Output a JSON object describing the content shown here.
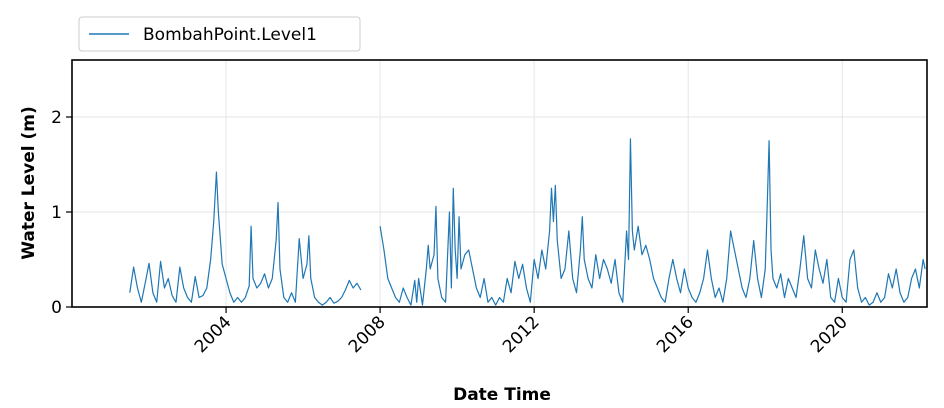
{
  "chart_data": {
    "type": "line",
    "xlabel": "Date Time",
    "ylabel": "Water Level (m)",
    "xlim": [
      2000.0,
      2022.2
    ],
    "ylim": [
      0,
      2.6
    ],
    "x_ticks": [
      2004,
      2008,
      2012,
      2016,
      2020
    ],
    "x_tick_labels": [
      "2004",
      "2008",
      "2012",
      "2016",
      "2020"
    ],
    "y_ticks": [
      0,
      1,
      2
    ],
    "y_tick_labels": [
      "0",
      "1",
      "2"
    ],
    "grid": true,
    "legend": "top-left, outside plot",
    "series": [
      {
        "name": "BombahPoint.Level1",
        "color": "#1f77b4",
        "segments": [
          [
            [
              2001.5,
              0.15
            ],
            [
              2001.6,
              0.42
            ],
            [
              2001.7,
              0.2
            ],
            [
              2001.8,
              0.05
            ],
            [
              2001.9,
              0.25
            ],
            [
              2002.0,
              0.46
            ],
            [
              2002.1,
              0.15
            ],
            [
              2002.2,
              0.05
            ],
            [
              2002.3,
              0.48
            ],
            [
              2002.4,
              0.2
            ],
            [
              2002.5,
              0.3
            ],
            [
              2002.6,
              0.12
            ],
            [
              2002.7,
              0.05
            ],
            [
              2002.8,
              0.42
            ],
            [
              2002.9,
              0.2
            ],
            [
              2003.0,
              0.1
            ],
            [
              2003.1,
              0.05
            ],
            [
              2003.2,
              0.32
            ],
            [
              2003.3,
              0.1
            ],
            [
              2003.4,
              0.12
            ],
            [
              2003.5,
              0.2
            ],
            [
              2003.6,
              0.5
            ],
            [
              2003.68,
              0.9
            ],
            [
              2003.75,
              1.42
            ],
            [
              2003.8,
              1.0
            ],
            [
              2003.9,
              0.45
            ],
            [
              2004.0,
              0.3
            ],
            [
              2004.1,
              0.15
            ],
            [
              2004.2,
              0.05
            ],
            [
              2004.3,
              0.1
            ],
            [
              2004.4,
              0.05
            ],
            [
              2004.5,
              0.1
            ],
            [
              2004.6,
              0.22
            ],
            [
              2004.65,
              0.85
            ],
            [
              2004.7,
              0.3
            ],
            [
              2004.8,
              0.2
            ],
            [
              2004.9,
              0.25
            ],
            [
              2005.0,
              0.35
            ],
            [
              2005.1,
              0.2
            ],
            [
              2005.2,
              0.3
            ],
            [
              2005.3,
              0.7
            ],
            [
              2005.35,
              1.1
            ],
            [
              2005.4,
              0.4
            ],
            [
              2005.5,
              0.1
            ],
            [
              2005.6,
              0.05
            ],
            [
              2005.7,
              0.15
            ],
            [
              2005.8,
              0.05
            ],
            [
              2005.9,
              0.72
            ],
            [
              2006.0,
              0.3
            ],
            [
              2006.1,
              0.45
            ],
            [
              2006.15,
              0.75
            ],
            [
              2006.2,
              0.3
            ],
            [
              2006.3,
              0.1
            ],
            [
              2006.4,
              0.05
            ],
            [
              2006.5,
              0.02
            ],
            [
              2006.6,
              0.05
            ],
            [
              2006.7,
              0.1
            ],
            [
              2006.8,
              0.04
            ],
            [
              2006.9,
              0.06
            ],
            [
              2007.0,
              0.1
            ],
            [
              2007.1,
              0.18
            ],
            [
              2007.2,
              0.28
            ],
            [
              2007.3,
              0.2
            ],
            [
              2007.4,
              0.25
            ],
            [
              2007.5,
              0.18
            ]
          ],
          [
            [
              2008.0,
              0.85
            ],
            [
              2008.1,
              0.6
            ],
            [
              2008.2,
              0.3
            ],
            [
              2008.3,
              0.2
            ],
            [
              2008.4,
              0.1
            ],
            [
              2008.5,
              0.05
            ],
            [
              2008.6,
              0.2
            ],
            [
              2008.7,
              0.1
            ],
            [
              2008.8,
              0.02
            ],
            [
              2008.9,
              0.28
            ],
            [
              2008.95,
              0.05
            ],
            [
              2009.0,
              0.3
            ],
            [
              2009.1,
              0.02
            ],
            [
              2009.2,
              0.4
            ],
            [
              2009.25,
              0.65
            ],
            [
              2009.3,
              0.4
            ],
            [
              2009.4,
              0.55
            ],
            [
              2009.45,
              1.06
            ],
            [
              2009.5,
              0.3
            ],
            [
              2009.6,
              0.1
            ],
            [
              2009.7,
              0.05
            ],
            [
              2009.8,
              1.0
            ],
            [
              2009.85,
              0.2
            ],
            [
              2009.9,
              1.25
            ],
            [
              2009.95,
              0.6
            ],
            [
              2010.0,
              0.3
            ],
            [
              2010.05,
              0.95
            ],
            [
              2010.1,
              0.4
            ],
            [
              2010.2,
              0.55
            ],
            [
              2010.3,
              0.6
            ],
            [
              2010.4,
              0.4
            ],
            [
              2010.5,
              0.2
            ],
            [
              2010.6,
              0.1
            ],
            [
              2010.7,
              0.3
            ],
            [
              2010.8,
              0.05
            ],
            [
              2010.9,
              0.1
            ],
            [
              2011.0,
              0.02
            ],
            [
              2011.1,
              0.1
            ],
            [
              2011.2,
              0.05
            ],
            [
              2011.3,
              0.3
            ],
            [
              2011.4,
              0.15
            ],
            [
              2011.5,
              0.48
            ],
            [
              2011.6,
              0.3
            ],
            [
              2011.7,
              0.45
            ],
            [
              2011.8,
              0.2
            ],
            [
              2011.9,
              0.05
            ],
            [
              2012.0,
              0.5
            ],
            [
              2012.1,
              0.3
            ],
            [
              2012.2,
              0.6
            ],
            [
              2012.3,
              0.4
            ],
            [
              2012.4,
              0.8
            ],
            [
              2012.45,
              1.25
            ],
            [
              2012.5,
              0.9
            ],
            [
              2012.55,
              1.28
            ],
            [
              2012.6,
              0.7
            ],
            [
              2012.7,
              0.3
            ],
            [
              2012.8,
              0.4
            ],
            [
              2012.9,
              0.8
            ],
            [
              2013.0,
              0.3
            ],
            [
              2013.1,
              0.15
            ],
            [
              2013.2,
              0.6
            ],
            [
              2013.25,
              0.95
            ],
            [
              2013.3,
              0.5
            ],
            [
              2013.4,
              0.3
            ],
            [
              2013.5,
              0.2
            ],
            [
              2013.6,
              0.55
            ],
            [
              2013.7,
              0.3
            ],
            [
              2013.8,
              0.5
            ],
            [
              2013.9,
              0.4
            ],
            [
              2014.0,
              0.25
            ],
            [
              2014.1,
              0.5
            ],
            [
              2014.2,
              0.15
            ],
            [
              2014.3,
              0.05
            ],
            [
              2014.4,
              0.8
            ],
            [
              2014.45,
              0.5
            ],
            [
              2014.5,
              1.77
            ],
            [
              2014.55,
              0.8
            ],
            [
              2014.6,
              0.6
            ],
            [
              2014.7,
              0.85
            ],
            [
              2014.8,
              0.55
            ],
            [
              2014.9,
              0.65
            ],
            [
              2015.0,
              0.5
            ],
            [
              2015.1,
              0.3
            ],
            [
              2015.2,
              0.2
            ],
            [
              2015.3,
              0.1
            ],
            [
              2015.4,
              0.05
            ],
            [
              2015.5,
              0.3
            ],
            [
              2015.6,
              0.5
            ],
            [
              2015.7,
              0.3
            ],
            [
              2015.8,
              0.15
            ],
            [
              2015.9,
              0.4
            ],
            [
              2016.0,
              0.2
            ],
            [
              2016.1,
              0.1
            ],
            [
              2016.2,
              0.05
            ],
            [
              2016.3,
              0.15
            ],
            [
              2016.4,
              0.3
            ],
            [
              2016.5,
              0.6
            ],
            [
              2016.6,
              0.3
            ],
            [
              2016.7,
              0.1
            ],
            [
              2016.8,
              0.2
            ],
            [
              2016.9,
              0.05
            ],
            [
              2017.0,
              0.3
            ],
            [
              2017.1,
              0.8
            ],
            [
              2017.2,
              0.6
            ],
            [
              2017.3,
              0.4
            ],
            [
              2017.4,
              0.2
            ],
            [
              2017.5,
              0.1
            ],
            [
              2017.6,
              0.3
            ],
            [
              2017.7,
              0.7
            ],
            [
              2017.8,
              0.3
            ],
            [
              2017.9,
              0.1
            ],
            [
              2018.0,
              0.4
            ],
            [
              2018.05,
              1.05
            ],
            [
              2018.1,
              1.75
            ],
            [
              2018.15,
              0.6
            ],
            [
              2018.2,
              0.3
            ],
            [
              2018.3,
              0.2
            ],
            [
              2018.4,
              0.35
            ],
            [
              2018.5,
              0.1
            ],
            [
              2018.6,
              0.3
            ],
            [
              2018.7,
              0.2
            ],
            [
              2018.8,
              0.1
            ],
            [
              2018.9,
              0.4
            ],
            [
              2019.0,
              0.75
            ],
            [
              2019.1,
              0.3
            ],
            [
              2019.2,
              0.2
            ],
            [
              2019.3,
              0.6
            ],
            [
              2019.4,
              0.4
            ],
            [
              2019.5,
              0.25
            ],
            [
              2019.6,
              0.5
            ],
            [
              2019.7,
              0.1
            ],
            [
              2019.8,
              0.05
            ],
            [
              2019.9,
              0.3
            ],
            [
              2020.0,
              0.1
            ],
            [
              2020.1,
              0.05
            ],
            [
              2020.2,
              0.5
            ],
            [
              2020.3,
              0.6
            ],
            [
              2020.4,
              0.2
            ],
            [
              2020.5,
              0.05
            ],
            [
              2020.6,
              0.1
            ],
            [
              2020.7,
              0.02
            ],
            [
              2020.8,
              0.05
            ],
            [
              2020.9,
              0.15
            ],
            [
              2021.0,
              0.05
            ],
            [
              2021.1,
              0.1
            ],
            [
              2021.2,
              0.35
            ],
            [
              2021.3,
              0.2
            ],
            [
              2021.4,
              0.4
            ],
            [
              2021.5,
              0.15
            ],
            [
              2021.6,
              0.05
            ],
            [
              2021.7,
              0.1
            ],
            [
              2021.8,
              0.3
            ],
            [
              2021.9,
              0.4
            ],
            [
              2022.0,
              0.2
            ],
            [
              2022.05,
              0.35
            ],
            [
              2022.1,
              0.5
            ],
            [
              2022.15,
              0.4
            ]
          ]
        ]
      }
    ]
  }
}
